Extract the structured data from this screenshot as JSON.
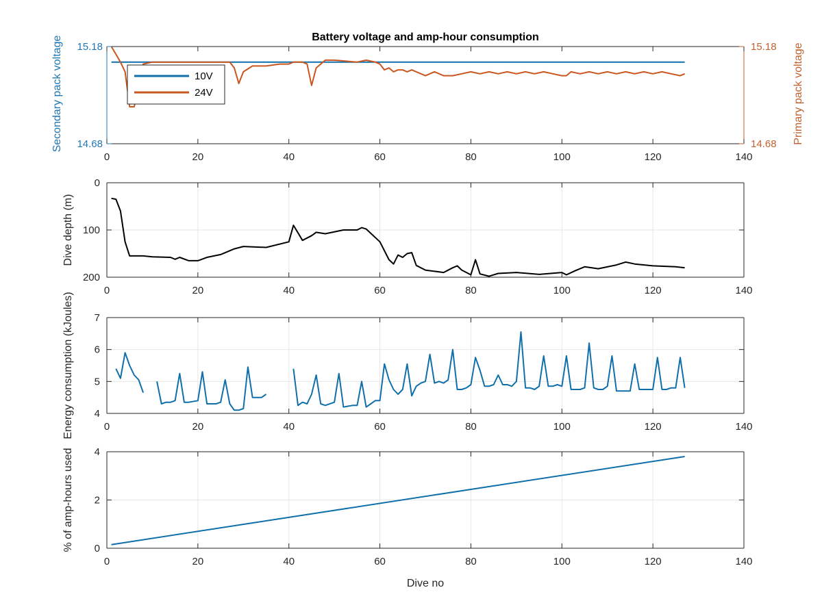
{
  "chart_data": [
    {
      "type": "line",
      "title": "Battery voltage and amp-hour consumption",
      "xlabel": "",
      "ylabel_left": "Secondary pack voltage",
      "ylabel_right": "Primary pack voltage",
      "xlim": [
        0,
        140
      ],
      "ylim": [
        14.68,
        15.18
      ],
      "xticks": [
        0,
        20,
        40,
        60,
        80,
        100,
        120,
        140
      ],
      "yticks_left": [
        "14.68",
        "15.18"
      ],
      "yticks_right": [
        "14.68",
        "15.18"
      ],
      "grid": false,
      "legend_position": "top-left",
      "left_axis_color": "#1f77b4",
      "right_axis_color": "#c0622f",
      "series": [
        {
          "name": "10V",
          "color": "#0f6faa",
          "axis": "left",
          "x": [
            1,
            127
          ],
          "y": [
            15.1,
            15.1
          ]
        },
        {
          "name": "24V",
          "color": "#c9561e",
          "axis": "right",
          "x": [
            1,
            2,
            3,
            4,
            5,
            6,
            7,
            8,
            10,
            12,
            15,
            18,
            20,
            22,
            25,
            27,
            28,
            29,
            30,
            32,
            35,
            38,
            40,
            41,
            43,
            44,
            45,
            46,
            48,
            50,
            55,
            57,
            59,
            60,
            61,
            62,
            63,
            64,
            65,
            66,
            67,
            68,
            70,
            72,
            74,
            76,
            78,
            80,
            82,
            84,
            86,
            88,
            90,
            92,
            94,
            96,
            98,
            100,
            101,
            102,
            104,
            106,
            108,
            110,
            112,
            114,
            116,
            118,
            120,
            122,
            124,
            126,
            127
          ],
          "y": [
            15.18,
            15.14,
            15.1,
            15.05,
            14.87,
            14.87,
            14.97,
            15.09,
            15.1,
            15.1,
            15.1,
            15.1,
            15.1,
            15.1,
            15.1,
            15.1,
            15.07,
            14.99,
            15.05,
            15.08,
            15.08,
            15.09,
            15.09,
            15.1,
            15.1,
            15.09,
            14.98,
            15.07,
            15.11,
            15.11,
            15.1,
            15.11,
            15.1,
            15.09,
            15.06,
            15.07,
            15.05,
            15.06,
            15.06,
            15.05,
            15.06,
            15.05,
            15.03,
            15.05,
            15.03,
            15.03,
            15.04,
            15.05,
            15.04,
            15.05,
            15.04,
            15.05,
            15.04,
            15.05,
            15.04,
            15.05,
            15.04,
            15.03,
            15.03,
            15.05,
            15.04,
            15.05,
            15.04,
            15.05,
            15.04,
            15.05,
            15.04,
            15.05,
            15.04,
            15.05,
            15.04,
            15.03,
            15.04
          ]
        }
      ]
    },
    {
      "type": "line",
      "xlabel": "",
      "ylabel": "Dive depth (m)",
      "xlim": [
        0,
        140
      ],
      "ylim": [
        0,
        200
      ],
      "y_reversed": true,
      "xticks": [
        0,
        20,
        40,
        60,
        80,
        100,
        120,
        140
      ],
      "yticks": [
        0,
        100,
        200
      ],
      "grid": true,
      "series": [
        {
          "color": "#000000",
          "x": [
            1,
            2,
            3,
            4,
            5,
            8,
            10,
            14,
            15,
            16,
            18,
            20,
            22,
            25,
            28,
            30,
            35,
            40,
            41,
            43,
            45,
            46,
            48,
            52,
            55,
            56,
            57,
            60,
            62,
            63,
            64,
            65,
            66,
            67,
            68,
            70,
            74,
            76,
            77,
            78,
            80,
            81,
            82,
            84,
            86,
            90,
            95,
            100,
            101,
            103,
            105,
            108,
            112,
            114,
            116,
            120,
            125,
            127
          ],
          "y": [
            33,
            35,
            60,
            125,
            155,
            155,
            157,
            158,
            162,
            158,
            165,
            165,
            158,
            152,
            140,
            135,
            137,
            125,
            90,
            122,
            112,
            105,
            108,
            100,
            100,
            95,
            98,
            125,
            163,
            172,
            153,
            158,
            150,
            148,
            175,
            185,
            190,
            180,
            176,
            185,
            195,
            163,
            193,
            198,
            192,
            190,
            194,
            190,
            195,
            186,
            178,
            182,
            174,
            168,
            172,
            176,
            178,
            180
          ]
        }
      ]
    },
    {
      "type": "line",
      "xlabel": "",
      "ylabel": "Energy consumption (kJoules)",
      "xlim": [
        0,
        140
      ],
      "ylim": [
        4,
        7
      ],
      "xticks": [
        0,
        20,
        40,
        60,
        80,
        100,
        120,
        140
      ],
      "yticks": [
        4,
        5,
        6,
        7
      ],
      "grid": true,
      "series": [
        {
          "color": "#0f6faa",
          "segments": [
            {
              "x": [
                2,
                3,
                4,
                5,
                6,
                7,
                8
              ],
              "y": [
                5.4,
                5.1,
                5.9,
                5.5,
                5.2,
                5.05,
                4.65
              ]
            },
            {
              "x": [
                11,
                12,
                13,
                14,
                15,
                16,
                17,
                18,
                20,
                21,
                22,
                24,
                25,
                26,
                27,
                28,
                29,
                30,
                31,
                32,
                34,
                35
              ],
              "y": [
                5.0,
                4.3,
                4.35,
                4.35,
                4.4,
                5.25,
                4.35,
                4.35,
                4.4,
                5.3,
                4.3,
                4.3,
                4.35,
                5.05,
                4.3,
                4.1,
                4.1,
                4.15,
                5.45,
                4.5,
                4.5,
                4.6
              ]
            },
            {
              "x": [
                41,
                42,
                43,
                44,
                45,
                46,
                47,
                48,
                50,
                51,
                52,
                54,
                55,
                56,
                57,
                58,
                59,
                60,
                61,
                62,
                63,
                64,
                65,
                66,
                67,
                68,
                69,
                70,
                71,
                72,
                73,
                74,
                75,
                76,
                77,
                78,
                79,
                80,
                81,
                82,
                83,
                84,
                85,
                86,
                87,
                88,
                89,
                90,
                91,
                92,
                93,
                94,
                95,
                96,
                97,
                98,
                99,
                100,
                101,
                102,
                103,
                104,
                105,
                106,
                107,
                108,
                109,
                110,
                111,
                112,
                113,
                114,
                115,
                116,
                117,
                118,
                119,
                120,
                121,
                122,
                123,
                124,
                125,
                126,
                127
              ],
              "y": [
                5.4,
                4.25,
                4.35,
                4.3,
                4.6,
                5.2,
                4.3,
                4.25,
                4.35,
                5.25,
                4.2,
                4.25,
                4.25,
                5.0,
                4.2,
                4.3,
                4.4,
                4.4,
                5.55,
                5.05,
                4.75,
                4.6,
                4.75,
                5.55,
                4.55,
                4.85,
                4.95,
                5.0,
                5.85,
                4.95,
                5.0,
                4.95,
                5.05,
                6.0,
                4.75,
                4.75,
                4.8,
                4.9,
                5.75,
                5.35,
                4.85,
                4.85,
                4.9,
                5.2,
                4.9,
                4.9,
                4.85,
                5.0,
                6.55,
                4.8,
                4.8,
                4.75,
                4.85,
                5.8,
                4.85,
                4.85,
                4.9,
                4.85,
                5.8,
                4.75,
                4.75,
                4.75,
                4.8,
                6.2,
                4.8,
                4.75,
                4.75,
                4.85,
                5.8,
                4.7,
                4.7,
                4.7,
                4.7,
                5.55,
                4.75,
                4.75,
                4.75,
                4.75,
                5.75,
                4.75,
                4.75,
                4.8,
                4.8,
                5.75,
                4.8
              ]
            }
          ]
        }
      ]
    },
    {
      "type": "line",
      "xlabel": "Dive no",
      "ylabel": "% of amp-hours used",
      "xlim": [
        0,
        140
      ],
      "ylim": [
        0,
        4
      ],
      "xticks": [
        0,
        20,
        40,
        60,
        80,
        100,
        120,
        140
      ],
      "yticks": [
        0,
        2,
        4
      ],
      "grid": true,
      "series": [
        {
          "color": "#0f6faa",
          "x": [
            1,
            127
          ],
          "y": [
            0.15,
            3.8
          ]
        }
      ]
    }
  ]
}
